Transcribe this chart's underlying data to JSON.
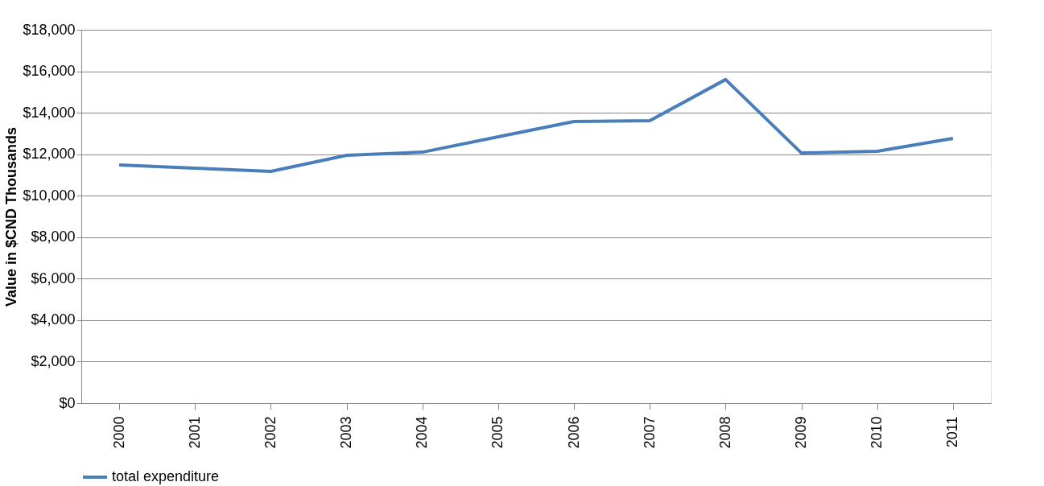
{
  "chart_data": {
    "type": "line",
    "ylabel": "Value in $CND  Thousands",
    "categories": [
      "2000",
      "2001",
      "2002",
      "2003",
      "2004",
      "2005",
      "2006",
      "2007",
      "2008",
      "2009",
      "2010",
      "2011"
    ],
    "series": [
      {
        "name": "total expenditure",
        "color": "#4a7ebb",
        "values": [
          11480,
          11330,
          11170,
          11950,
          12100,
          12840,
          13580,
          13620,
          15600,
          12060,
          12140,
          12760
        ]
      }
    ],
    "ylim": [
      0,
      18000
    ],
    "yticks": [
      {
        "value": 0,
        "label": "$0"
      },
      {
        "value": 2000,
        "label": "$2,000"
      },
      {
        "value": 4000,
        "label": "$4,000"
      },
      {
        "value": 6000,
        "label": "$6,000"
      },
      {
        "value": 8000,
        "label": "$8,000"
      },
      {
        "value": 10000,
        "label": "$10,000"
      },
      {
        "value": 12000,
        "label": "$12,000"
      },
      {
        "value": 14000,
        "label": "$14,000"
      },
      {
        "value": 16000,
        "label": "$16,000"
      },
      {
        "value": 18000,
        "label": "$18,000"
      }
    ],
    "grid": "y",
    "legend": "bottom",
    "marker": "none",
    "line_style": "solid"
  }
}
